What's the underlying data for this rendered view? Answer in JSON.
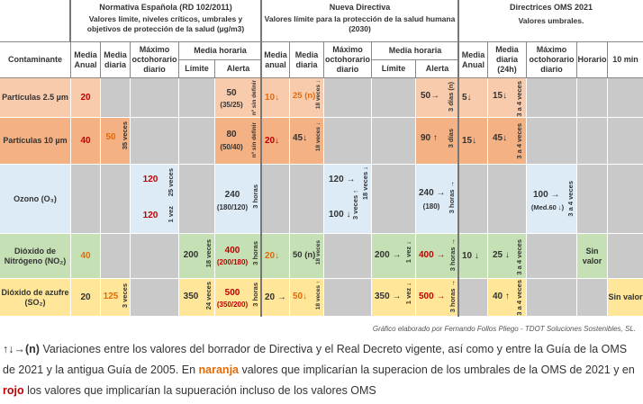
{
  "groups": [
    {
      "title": "Normativa Española (RD 102/2011)",
      "subtitle": "Valores límite, niveles críticos, umbrales y objetivos de protección de la salud (µg/m3)"
    },
    {
      "title": "Nueva Directiva",
      "subtitle": "Valores límite para la protección de la salud humana (2030)"
    },
    {
      "title": "Directrices OMS 2021",
      "subtitle": "Valores umbrales."
    }
  ],
  "columns": {
    "contaminante": "Contaminante",
    "media_anual": "Media Anual",
    "media_anual_lc": "Media anual",
    "media_diaria": "Media diaria",
    "maximo_octohorario": "Máximo octohorario diario",
    "media_horaria": "Media horaria",
    "limite": "Límite",
    "alerta": "Alerta",
    "media_diaria_24h": "Media diaria (24h)",
    "horario": "Horario",
    "diez_min": "10 min"
  },
  "pollutants": [
    {
      "name": "Partículas 2.5 µm"
    },
    {
      "name": "Partículas 10 µm"
    },
    {
      "name": "Ozono (O₃)"
    },
    {
      "name": "Dióxido de Nitrógeno (NO₂)"
    },
    {
      "name": "Dióxido de azufre (SO₂)"
    }
  ],
  "rd": {
    "pm25": {
      "anual": "20",
      "alerta": "50",
      "alerta_sub": "(35/25)",
      "alerta_note": "nº sin definir"
    },
    "pm10": {
      "anual": "40",
      "diaria": "50",
      "diaria_note": "35 veces",
      "alerta": "80",
      "alerta_sub": "(50/40)",
      "alerta_note": "nº sin definir"
    },
    "o3": {
      "octo1": "120",
      "octo1_note": "25 veces",
      "octo2": "120",
      "octo2_note": "1 vez",
      "alerta": "240",
      "alerta_sub": "(180/120)",
      "alerta_note": "3 horas"
    },
    "no2": {
      "anual": "40",
      "limite": "200",
      "limite_note": "18 veces",
      "alerta": "400",
      "alerta_sub": "(200/180)",
      "alerta_note": "3 horas"
    },
    "so2": {
      "anual": "20",
      "diaria": "125",
      "diaria_note": "3 veces",
      "limite": "350",
      "limite_note": "24 veces",
      "alerta": "500",
      "alerta_sub": "(350/200)",
      "alerta_note": "3 horas"
    }
  },
  "nd": {
    "pm25": {
      "anual": "10↓",
      "diaria": "25 (n)",
      "diaria_note": "18 veces ↓",
      "alerta": "50→",
      "alerta_note": "3 días (n)"
    },
    "pm10": {
      "anual": "20↓",
      "diaria": "45↓",
      "diaria_note": "18 veces ↓",
      "alerta": "90 ↑",
      "alerta_note": "3 días"
    },
    "o3": {
      "octo1": "120 →",
      "octo1_note": "18 veces ↓",
      "octo2": "100 ↓",
      "octo2_note": "3 veces ↑",
      "alerta": "240 →",
      "alerta_sub": "(180)",
      "alerta_note": "3 horas →"
    },
    "no2": {
      "anual": "20↓",
      "diaria": "50 (n)",
      "diaria_note": "18 veces",
      "limite": "200 →",
      "limite_note": "1 vez ↓",
      "alerta": "400 →",
      "alerta_note": "3 horas →"
    },
    "so2": {
      "anual": "20 →",
      "diaria": "50↓",
      "diaria_note": "18 veces ↑",
      "limite": "350 →",
      "limite_note": "1 vez ↓",
      "alerta": "500 →",
      "alerta_note": "3 horas →"
    }
  },
  "oms": {
    "pm25": {
      "anual": "5↓",
      "diaria": "15↓",
      "diaria_note": "3 a 4 veces"
    },
    "pm10": {
      "anual": "15↓",
      "diaria": "45↓",
      "diaria_note": "3 a 4 veces"
    },
    "o3": {
      "octo": "100 →",
      "octo_sub": "(Med.60 ↓)",
      "octo_note": "3 a 4 veces"
    },
    "no2": {
      "anual": "10 ↓",
      "diaria": "25 ↓",
      "diaria_note": "3 a 4 veces",
      "horario": "Sin valor"
    },
    "so2": {
      "diaria": "40 ↑",
      "diaria_note": "3 a 4 veces",
      "diez": "Sin valor"
    }
  },
  "credit": "Gráfico elaborado por Fernando Follos Pliego - TDOT Soluciones Sostenibles, SL.",
  "legend": {
    "arrows": "↑↓→(n)",
    "text1": " Variaciones entre los valores del borrador de Directiva y el Real Decreto vigente, así como y entre la Guía de la OMS de 2021 y la antigua Guía de 2005.  En ",
    "naranja": "naranja",
    "text2": " valores que implicarían la superacion de los umbrales de la OMS de 2021 y en ",
    "rojo": "rojo",
    "text3": " los valores que implicarían la supueración incluso de los valores OMS"
  },
  "colors": {
    "pm25": "#f8cbad",
    "pm10": "#f4b183",
    "o3": "#ddebf7",
    "no2": "#c5e0b4",
    "so2": "#ffe699",
    "orange": "#e26b0a",
    "red": "#c00000"
  }
}
